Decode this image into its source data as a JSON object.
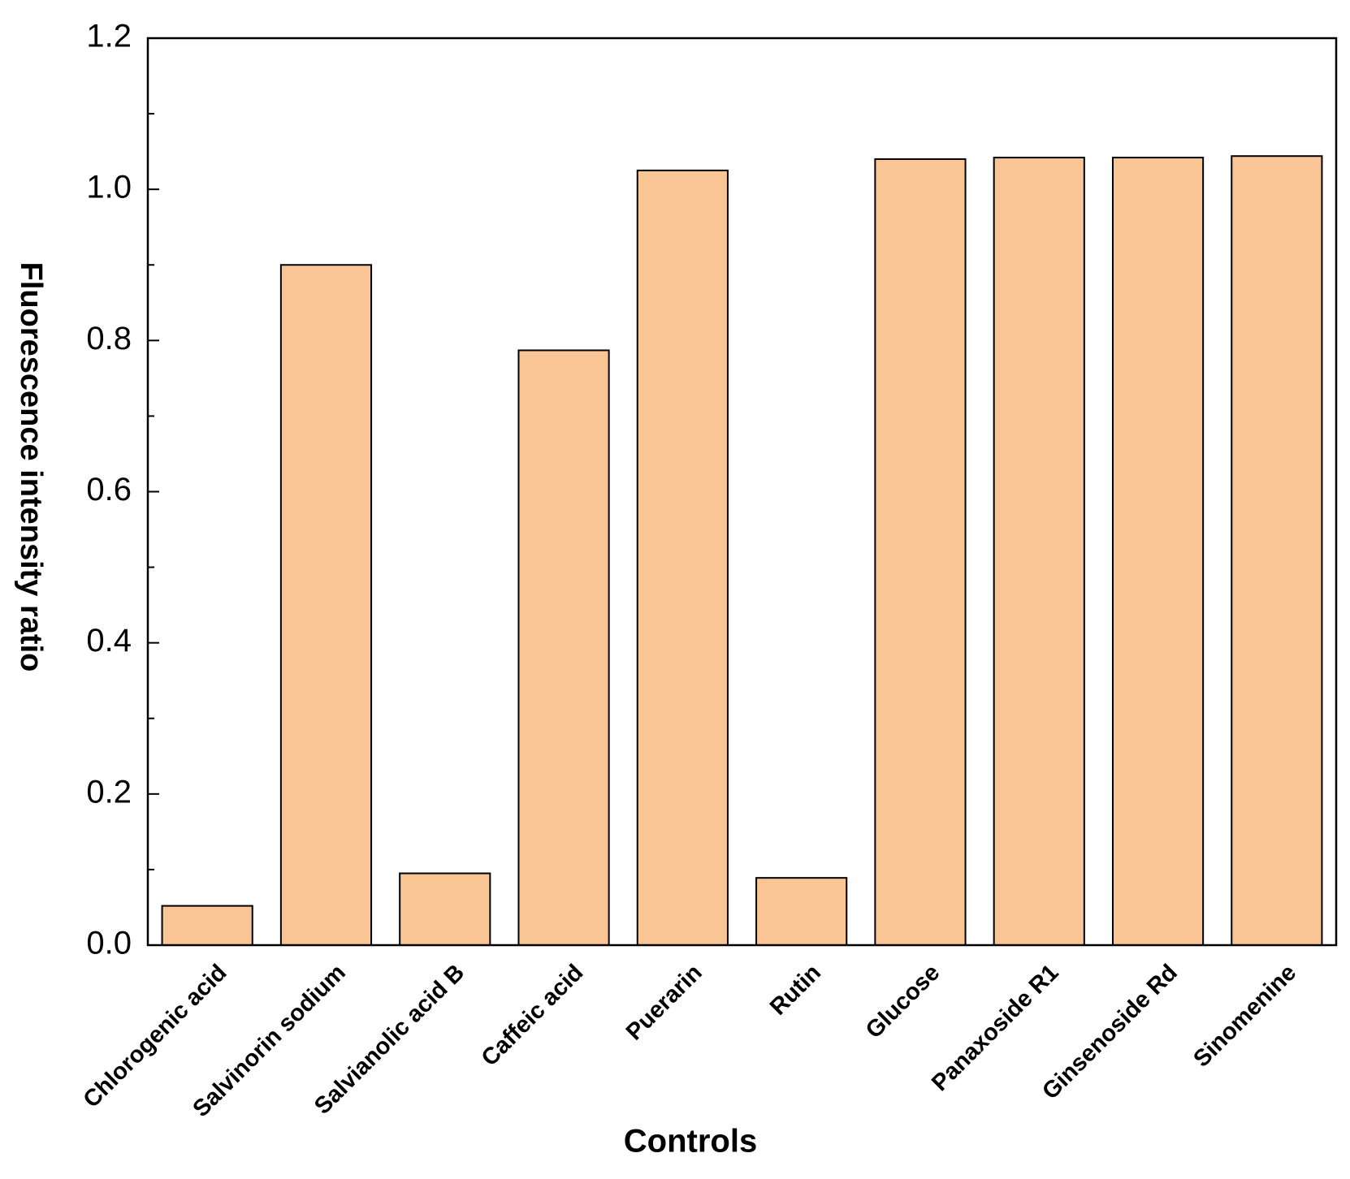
{
  "chart_data": {
    "type": "bar",
    "x_label": "Controls",
    "y_label": "Fluorescence intensity ratio",
    "categories": [
      "Chlorogenic acid",
      "Salvinorin sodium",
      "Salvianolic acid B",
      "Caffeic acid",
      "Puerarin",
      "Rutin",
      "Glucose",
      "Panaxoside R1",
      "Ginsenoside Rd",
      "Sinomenine"
    ],
    "values": [
      0.052,
      0.9,
      0.095,
      0.787,
      1.025,
      0.089,
      1.04,
      1.042,
      1.042,
      1.044
    ],
    "color": "#f9c594",
    "ylim": [
      0,
      1.2
    ],
    "yticks": [
      {
        "value": 0,
        "label": "0.0"
      },
      0.2,
      0.4,
      0.6,
      0.8,
      {
        "value": 1,
        "label": "1.0"
      },
      1.2
    ],
    "yminorticks": [
      0.1,
      0.3,
      0.5,
      0.7,
      0.9,
      1.1
    ]
  }
}
